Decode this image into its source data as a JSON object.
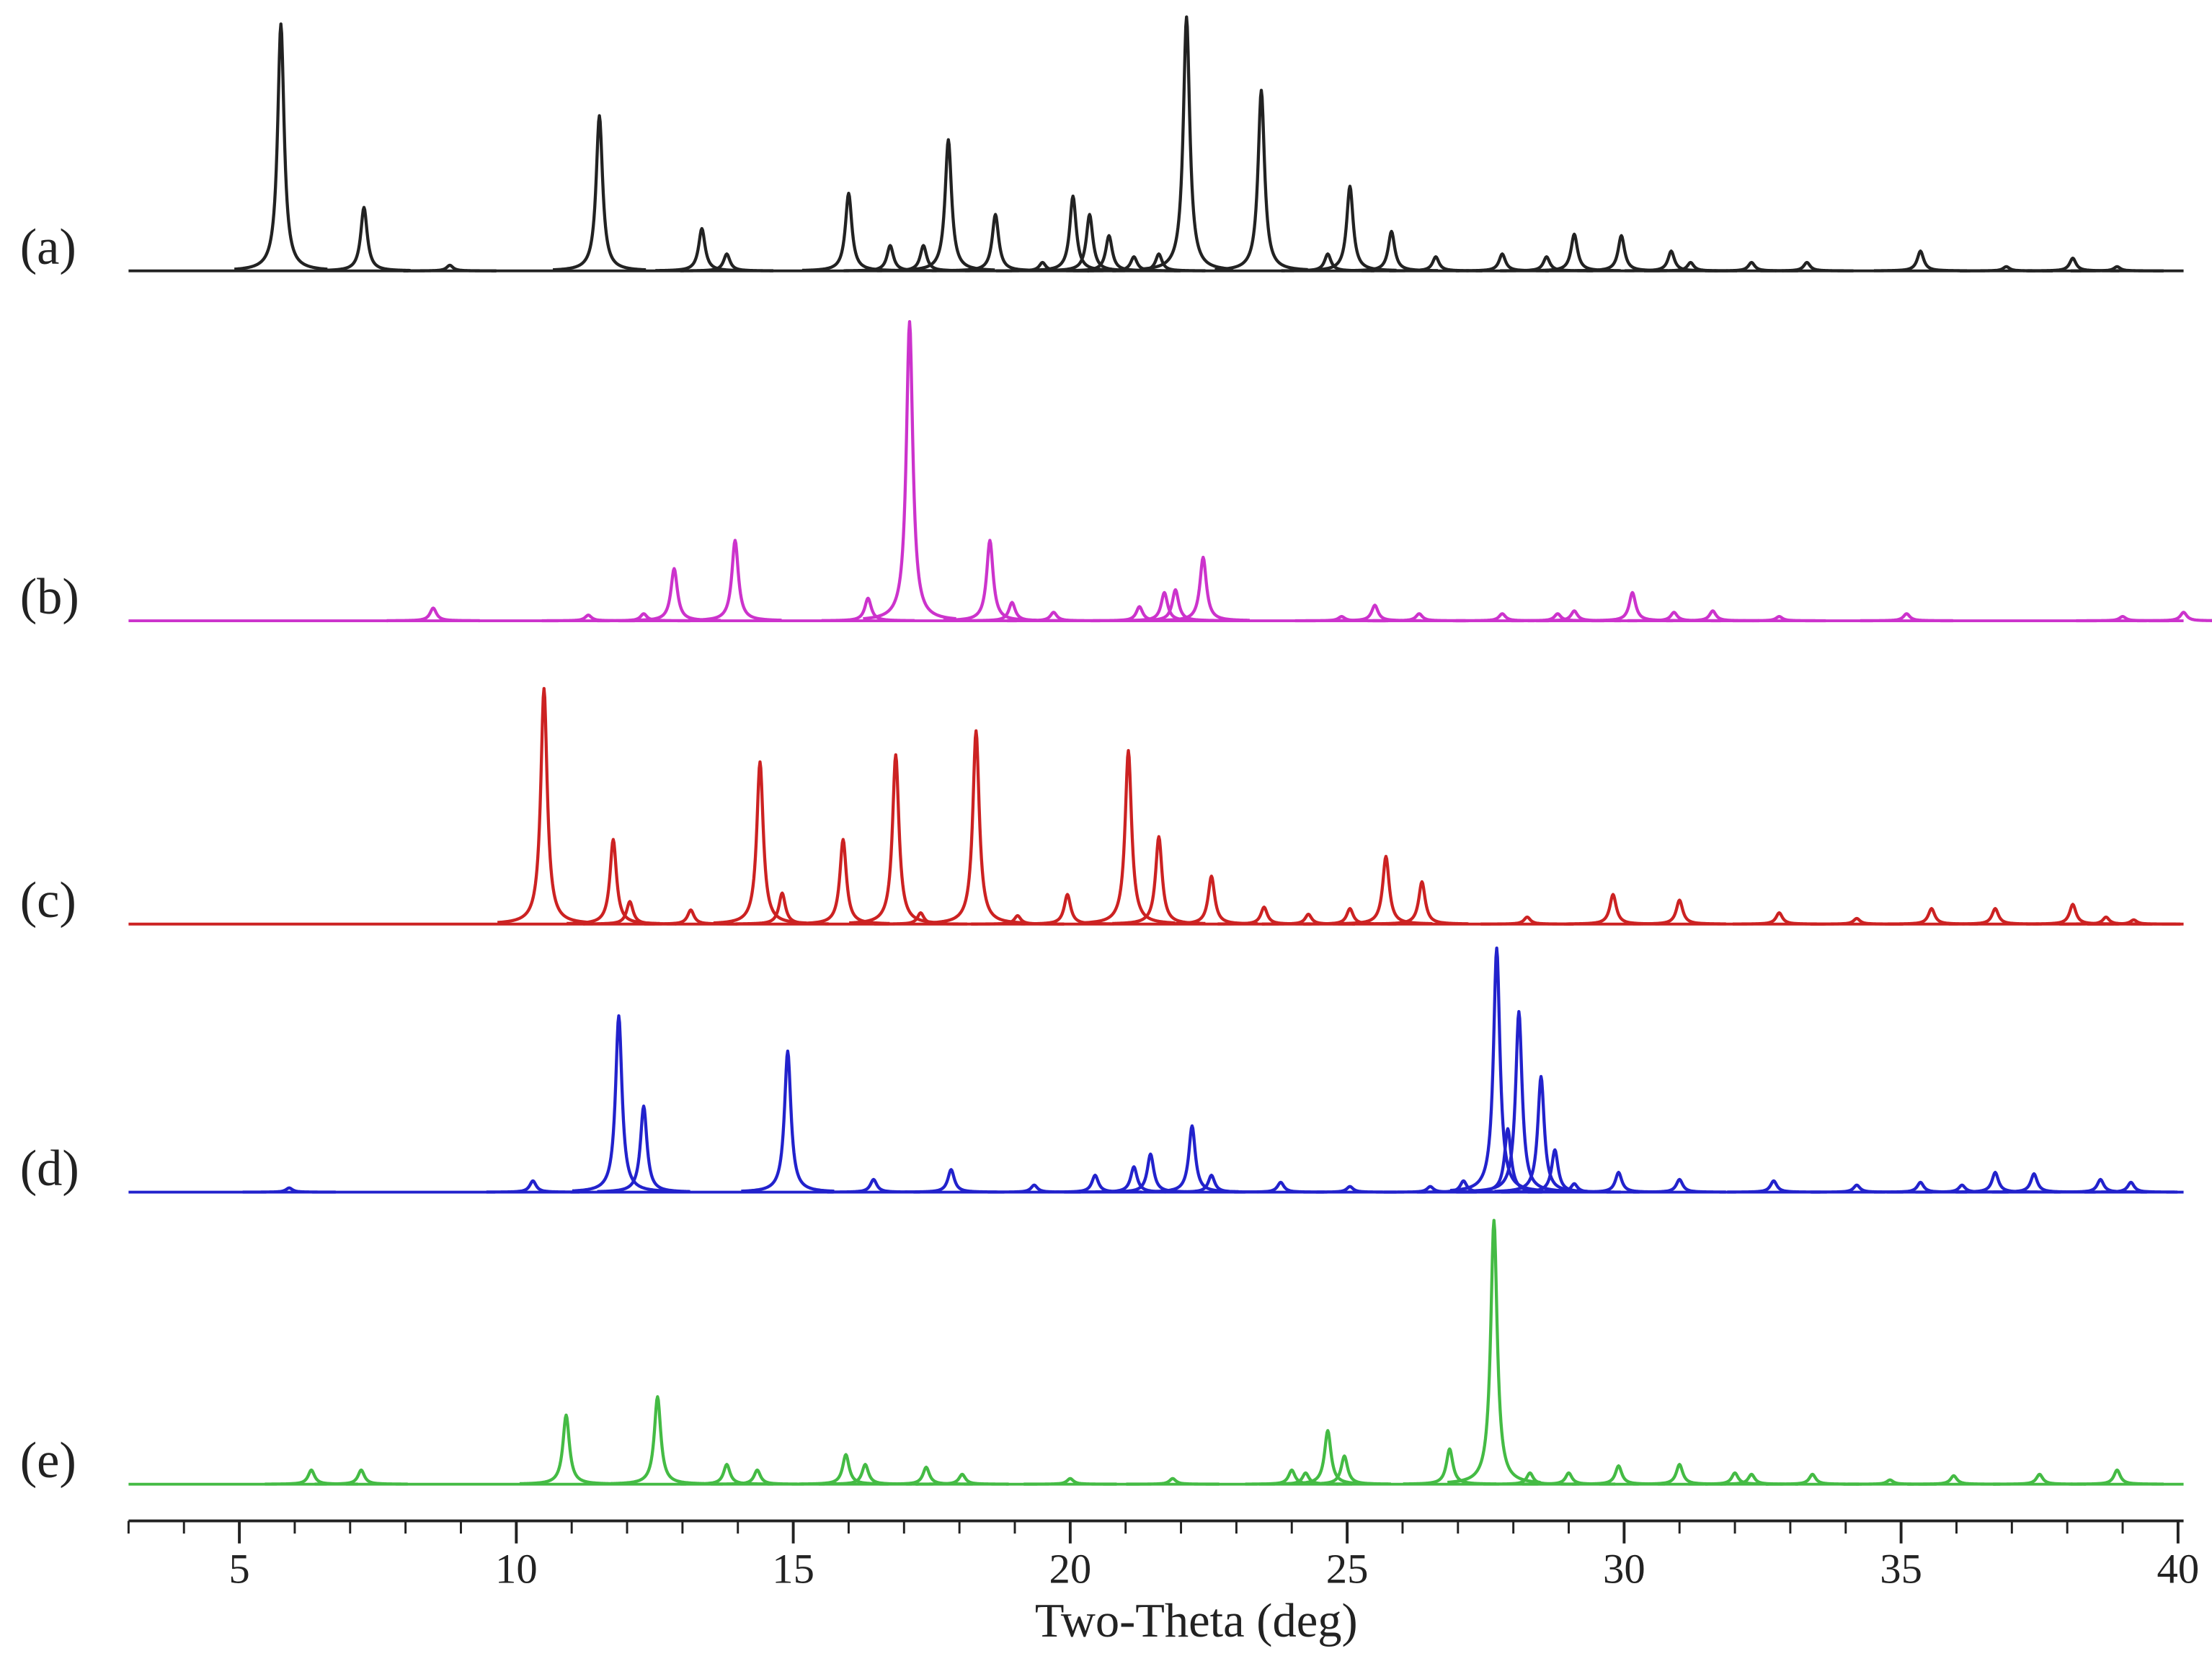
{
  "chart_data": {
    "type": "xrd-stack",
    "x_label": "Two-Theta (deg)",
    "xlim": [
      3,
      40.1
    ],
    "xticks": [
      5,
      10,
      15,
      20,
      25,
      30,
      35,
      40
    ],
    "series": [
      {
        "name": "(a)",
        "color": "#222222",
        "x": [
          5.75,
          7.25,
          8.8,
          11.5,
          13.35,
          13.8,
          16.0,
          16.75,
          17.35,
          17.8,
          18.65,
          19.5,
          20.05,
          20.35,
          20.7,
          21.15,
          21.6,
          22.1,
          23.45,
          24.65,
          25.05,
          25.8,
          26.6,
          27.8,
          28.6,
          29.1,
          29.95,
          30.85,
          31.2,
          32.3,
          33.3,
          35.35,
          36.9,
          38.1,
          38.9
        ],
        "values": [
          175,
          45,
          4,
          110,
          30,
          12,
          55,
          18,
          18,
          93,
          40,
          6,
          53,
          40,
          25,
          10,
          12,
          180,
          128,
          12,
          60,
          28,
          10,
          12,
          10,
          26,
          25,
          14,
          6,
          6,
          6,
          14,
          3,
          9,
          3
        ]
      },
      {
        "name": "(b)",
        "color": "#cc33cc",
        "x": [
          8.5,
          11.3,
          12.3,
          12.85,
          13.95,
          16.35,
          17.1,
          18.55,
          18.95,
          19.7,
          21.25,
          21.7,
          21.9,
          22.4,
          24.9,
          25.5,
          26.3,
          27.8,
          28.8,
          29.1,
          30.15,
          30.9,
          31.6,
          32.8,
          35.1,
          39.0,
          40.1
        ],
        "values": [
          9,
          4,
          5,
          37,
          57,
          16,
          212,
          57,
          13,
          6,
          10,
          20,
          22,
          45,
          3,
          11,
          5,
          5,
          5,
          7,
          20,
          6,
          7,
          3,
          5,
          3,
          6
        ]
      },
      {
        "name": "(c)",
        "color": "#cc2222",
        "x": [
          10.5,
          11.75,
          12.05,
          13.15,
          14.4,
          14.8,
          15.9,
          16.85,
          17.3,
          18.3,
          19.05,
          19.95,
          21.05,
          21.6,
          22.55,
          23.5,
          24.3,
          25.05,
          25.7,
          26.35,
          28.25,
          29.8,
          31.0,
          32.8,
          34.2,
          35.55,
          36.7,
          38.1,
          38.7,
          39.2
        ],
        "values": [
          167,
          60,
          16,
          10,
          115,
          22,
          60,
          120,
          8,
          137,
          6,
          21,
          123,
          62,
          34,
          12,
          7,
          11,
          48,
          30,
          5,
          21,
          17,
          8,
          4,
          11,
          11,
          14,
          5,
          3
        ]
      },
      {
        "name": "(d)",
        "color": "#2222cc",
        "x": [
          5.9,
          10.3,
          11.85,
          12.3,
          14.9,
          16.45,
          17.85,
          19.35,
          20.45,
          21.15,
          21.45,
          22.2,
          22.55,
          23.8,
          25.05,
          26.5,
          27.1,
          27.7,
          27.9,
          28.1,
          28.5,
          28.75,
          29.1,
          29.9,
          31.0,
          32.7,
          34.2,
          35.35,
          36.1,
          36.7,
          37.4,
          38.6,
          39.15
        ],
        "values": [
          3,
          8,
          125,
          61,
          100,
          9,
          16,
          5,
          12,
          18,
          27,
          47,
          12,
          7,
          4,
          4,
          8,
          173,
          45,
          128,
          82,
          30,
          6,
          14,
          9,
          8,
          5,
          7,
          5,
          14,
          13,
          9,
          7
        ]
      },
      {
        "name": "(e)",
        "color": "#44bb44",
        "x": [
          6.3,
          7.2,
          10.9,
          12.55,
          13.8,
          14.35,
          15.95,
          16.3,
          17.4,
          18.05,
          20.0,
          21.85,
          24.0,
          24.25,
          24.65,
          24.95,
          26.85,
          27.65,
          28.3,
          29.0,
          29.9,
          31.0,
          32.0,
          32.3,
          33.4,
          34.8,
          35.95,
          37.5,
          38.9
        ],
        "values": [
          10,
          10,
          49,
          62,
          14,
          10,
          21,
          14,
          12,
          7,
          4,
          4,
          10,
          8,
          38,
          20,
          25,
          187,
          8,
          8,
          13,
          14,
          8,
          7,
          7,
          3,
          6,
          7,
          10
        ]
      }
    ]
  }
}
